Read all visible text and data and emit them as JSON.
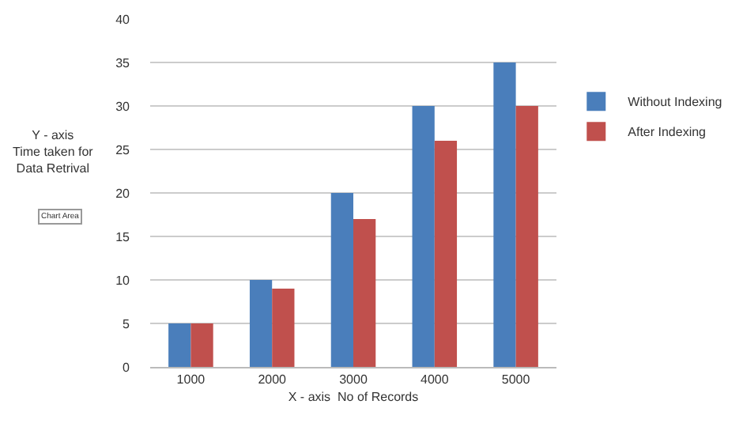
{
  "chart_data": {
    "type": "bar",
    "xlabel": "X - axis  No of Records",
    "ylabel": "Y - axis\nTime taken for\nData Retrival",
    "categories": [
      "1000",
      "2000",
      "3000",
      "4000",
      "5000"
    ],
    "series": [
      {
        "name": "Without Indexing",
        "color": "#4a7ebb",
        "values": [
          5,
          10,
          20,
          30,
          35
        ]
      },
      {
        "name": "After Indexing",
        "color": "#c0504d",
        "values": [
          5,
          9,
          17,
          26,
          30
        ]
      }
    ],
    "ylim": [
      0,
      40
    ],
    "yticks": [
      0,
      5,
      10,
      15,
      20,
      25,
      30,
      35,
      40
    ],
    "grid": "y",
    "legend": "right",
    "annotations": [
      "Chart Area"
    ]
  }
}
